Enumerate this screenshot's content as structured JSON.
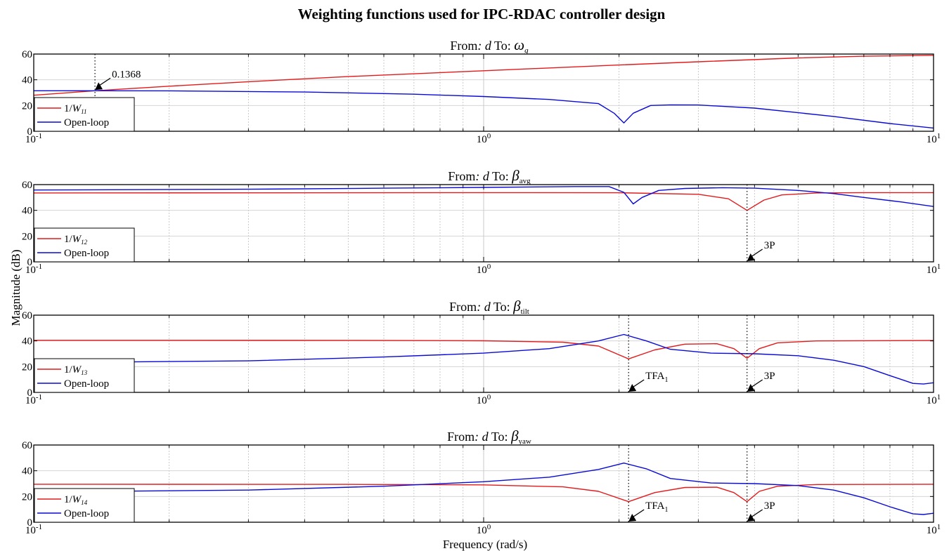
{
  "figure": {
    "title": "Weighting functions used for IPC-RDAC controller design",
    "ylabel": "Magnitude (dB)",
    "xlabel": "Frequency  (rad/s)"
  },
  "colors": {
    "weight": "#e31a1c",
    "openloop": "#0a0ad6"
  },
  "chart_data": [
    {
      "type": "line",
      "title": {
        "prefix": "From",
        "from": "d",
        "mid": " To: ",
        "sym": "ω",
        "sub": "g",
        "sub_italic": true
      },
      "xscale": "log",
      "xlim": [
        0.1,
        10
      ],
      "ylim": [
        0,
        60
      ],
      "xticks": [
        {
          "base": "10",
          "exp": "-1"
        },
        {
          "base": "10",
          "exp": "0"
        },
        {
          "base": "10",
          "exp": "1"
        }
      ],
      "yticks": [
        0,
        20,
        40,
        60
      ],
      "grid": true,
      "legend": {
        "location": "lower-left",
        "entries": [
          {
            "text": "1/",
            "sym": "W",
            "sub": "11",
            "series": "weight"
          },
          {
            "text": "Open-loop",
            "series": "openloop"
          }
        ]
      },
      "series": [
        {
          "key": "weight",
          "x": [
            0.1,
            0.1368,
            0.2,
            0.3,
            0.5,
            1,
            2,
            3,
            5,
            7,
            10
          ],
          "y": [
            28,
            31.5,
            35,
            38.5,
            42.5,
            47,
            51.5,
            54,
            57,
            58.3,
            59
          ]
        },
        {
          "key": "openloop",
          "x": [
            0.1,
            0.2,
            0.4,
            0.7,
            1,
            1.4,
            1.8,
            1.95,
            2.05,
            2.15,
            2.35,
            2.6,
            3,
            4,
            6,
            8,
            10
          ],
          "y": [
            31.5,
            31.4,
            30.5,
            28.8,
            27,
            24.7,
            21.5,
            14,
            6.5,
            14,
            20,
            20.5,
            20.4,
            18,
            11.5,
            6,
            2.5
          ]
        }
      ],
      "annotations": [
        {
          "x": 0.1368,
          "y": 31.5,
          "label": "0.1368",
          "sub": ""
        }
      ]
    },
    {
      "type": "line",
      "title": {
        "prefix": "From",
        "from": "d",
        "mid": " To: ",
        "sym": "β",
        "sub": "avg",
        "sub_italic": false
      },
      "xscale": "log",
      "xlim": [
        0.1,
        10
      ],
      "ylim": [
        0,
        60
      ],
      "xticks": [
        {
          "base": "10",
          "exp": "-1"
        },
        {
          "base": "10",
          "exp": "0"
        },
        {
          "base": "10",
          "exp": "1"
        }
      ],
      "yticks": [
        0,
        20,
        40,
        60
      ],
      "grid": true,
      "legend": {
        "location": "lower-left",
        "entries": [
          {
            "text": "1/",
            "sym": "W",
            "sub": "12",
            "series": "weight"
          },
          {
            "text": "Open-loop",
            "series": "openloop"
          }
        ]
      },
      "series": [
        {
          "key": "weight",
          "x": [
            0.1,
            0.5,
            1,
            2,
            3,
            3.5,
            3.85,
            4.2,
            4.6,
            5.5,
            7,
            10
          ],
          "y": [
            53.5,
            53.7,
            53.8,
            53.7,
            52.5,
            49,
            40,
            48,
            52,
            53.5,
            53.8,
            53.8
          ]
        },
        {
          "key": "openloop",
          "x": [
            0.1,
            0.3,
            0.6,
            1,
            1.6,
            1.9,
            2.05,
            2.15,
            2.25,
            2.45,
            2.8,
            3.4,
            4,
            5,
            6,
            7,
            8.5,
            10
          ],
          "y": [
            55.8,
            56.4,
            57.2,
            57.8,
            58.5,
            58.5,
            54,
            45,
            50,
            55.5,
            57,
            57.6,
            57.2,
            55.5,
            53,
            50,
            46.5,
            43
          ]
        }
      ],
      "annotations": [
        {
          "x": 3.85,
          "y": 0,
          "label": "3P",
          "sub": ""
        }
      ]
    },
    {
      "type": "line",
      "title": {
        "prefix": "From",
        "from": "d",
        "mid": " To: ",
        "sym": "β",
        "sub": "tilt",
        "sub_italic": false
      },
      "xscale": "log",
      "xlim": [
        0.1,
        10
      ],
      "ylim": [
        0,
        60
      ],
      "xticks": [
        {
          "base": "10",
          "exp": "-1"
        },
        {
          "base": "10",
          "exp": "0"
        },
        {
          "base": "10",
          "exp": "1"
        }
      ],
      "yticks": [
        0,
        20,
        40,
        60
      ],
      "grid": true,
      "legend": {
        "location": "lower-left",
        "entries": [
          {
            "text": "1/",
            "sym": "W",
            "sub": "13",
            "series": "weight"
          },
          {
            "text": "Open-loop",
            "series": "openloop"
          }
        ]
      },
      "series": [
        {
          "key": "weight",
          "x": [
            0.1,
            0.5,
            1,
            1.5,
            1.8,
            2.1,
            2.4,
            2.8,
            3.3,
            3.6,
            3.85,
            4.1,
            4.5,
            5.5,
            10
          ],
          "y": [
            40.5,
            40.4,
            40.1,
            39,
            36,
            26,
            33,
            37.5,
            37.8,
            34,
            26.5,
            34,
            38.5,
            40,
            40.3
          ]
        },
        {
          "key": "openloop",
          "x": [
            0.1,
            0.3,
            0.6,
            1,
            1.4,
            1.8,
            2.05,
            2.3,
            2.6,
            3.2,
            4,
            5,
            6,
            7,
            8,
            9,
            9.5,
            10
          ],
          "y": [
            23,
            24.5,
            27.5,
            30.5,
            34,
            40,
            45,
            40,
            33.5,
            30.5,
            30,
            28.5,
            25,
            20,
            13,
            7,
            6.5,
            7.5
          ]
        }
      ],
      "annotations": [
        {
          "x": 2.1,
          "y": 0,
          "label": "TFA",
          "sub": "1"
        },
        {
          "x": 3.85,
          "y": 0,
          "label": "3P",
          "sub": ""
        }
      ]
    },
    {
      "type": "line",
      "title": {
        "prefix": "From",
        "from": "d",
        "mid": " To: ",
        "sym": "β",
        "sub": "yaw",
        "sub_italic": false
      },
      "xscale": "log",
      "xlim": [
        0.1,
        10
      ],
      "ylim": [
        0,
        60
      ],
      "xticks": [
        {
          "base": "10",
          "exp": "-1"
        },
        {
          "base": "10",
          "exp": "0"
        },
        {
          "base": "10",
          "exp": "1"
        }
      ],
      "yticks": [
        0,
        20,
        40,
        60
      ],
      "grid": true,
      "legend": {
        "location": "lower-left",
        "entries": [
          {
            "text": "1/",
            "sym": "W",
            "sub": "14",
            "series": "weight"
          },
          {
            "text": "Open-loop",
            "series": "openloop"
          }
        ]
      },
      "series": [
        {
          "key": "weight",
          "x": [
            0.1,
            0.5,
            1,
            1.5,
            1.8,
            2.1,
            2.4,
            2.8,
            3.3,
            3.6,
            3.85,
            4.1,
            4.5,
            5.5,
            10
          ],
          "y": [
            29.5,
            29.4,
            29,
            27.5,
            24,
            16,
            23,
            27,
            27.2,
            23,
            16,
            24,
            28,
            29.3,
            29.5
          ]
        },
        {
          "key": "openloop",
          "x": [
            0.1,
            0.3,
            0.6,
            1,
            1.4,
            1.8,
            2.05,
            2.3,
            2.6,
            3.2,
            4,
            5,
            6,
            7,
            8,
            9,
            9.5,
            10
          ],
          "y": [
            23.5,
            25,
            28,
            31.5,
            35,
            41,
            46,
            41.5,
            34,
            30.5,
            30,
            28.5,
            25,
            19,
            12,
            6.5,
            6,
            7
          ]
        }
      ],
      "annotations": [
        {
          "x": 2.1,
          "y": 0,
          "label": "TFA",
          "sub": "1"
        },
        {
          "x": 3.85,
          "y": 0,
          "label": "3P",
          "sub": ""
        }
      ]
    }
  ]
}
